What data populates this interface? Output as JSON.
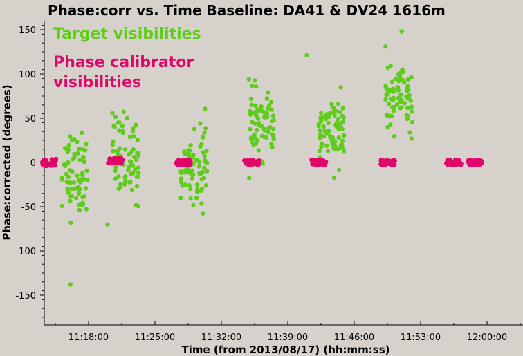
{
  "chart_data": {
    "type": "scatter",
    "title": "Phase:corr vs. Time Baseline: DA41 & DV24 1616m",
    "xlabel": "Time (from 2013/08/17) (hh:mm:ss)",
    "ylabel": "Phase:corrected (degrees)",
    "ylim": [
      -180,
      165
    ],
    "x_range_minutes": [
      683,
      734
    ],
    "x_ticks": [
      {
        "label": "11:18:00",
        "minute": 678
      },
      {
        "label": "11:25:00",
        "minute": 685
      },
      {
        "label": "11:32:00",
        "minute": 692
      },
      {
        "label": "11:39:00",
        "minute": 699
      },
      {
        "label": "11:46:00",
        "minute": 706
      },
      {
        "label": "11:53:00",
        "minute": 713
      },
      {
        "label": "12:00:00",
        "minute": 720
      }
    ],
    "y_ticks": [
      150,
      100,
      50,
      0,
      -50,
      -100,
      -150
    ],
    "grid": false,
    "legend_position": "top-left",
    "series": [
      {
        "name": "Target visibilities",
        "color": "#5fcc1c",
        "scans": [
          {
            "start": 675.2,
            "end": 677.9,
            "center": -10,
            "spread": 40
          },
          {
            "start": 680.5,
            "end": 683.3,
            "center": 5,
            "spread": 40
          },
          {
            "start": 687.7,
            "end": 690.5,
            "center": -5,
            "spread": 38
          },
          {
            "start": 694.9,
            "end": 697.7,
            "center": 45,
            "spread": 30
          },
          {
            "start": 702.2,
            "end": 705.0,
            "center": 35,
            "spread": 30
          },
          {
            "start": 709.3,
            "end": 712.2,
            "center": 70,
            "spread": 28
          }
        ],
        "outliers": [
          [
            676.1,
            -138
          ],
          [
            711.0,
            148
          ],
          [
            709.3,
            131
          ],
          [
            701.0,
            121
          ],
          [
            680.0,
            -70
          ]
        ]
      },
      {
        "name": "Phase calibrator visibilities",
        "color": "#e0076a",
        "scans": [
          {
            "start": 673.0,
            "end": 674.6,
            "center": 0,
            "spread": 4
          },
          {
            "start": 680.0,
            "end": 681.6,
            "center": 2,
            "spread": 3
          },
          {
            "start": 687.2,
            "end": 688.8,
            "center": 0,
            "spread": 3
          },
          {
            "start": 694.4,
            "end": 696.0,
            "center": 0,
            "spread": 3
          },
          {
            "start": 701.5,
            "end": 703.1,
            "center": 0,
            "spread": 3
          },
          {
            "start": 708.7,
            "end": 710.3,
            "center": 0,
            "spread": 3
          },
          {
            "start": 715.7,
            "end": 717.3,
            "center": 0,
            "spread": 3
          },
          {
            "start": 718.0,
            "end": 719.5,
            "center": 0,
            "spread": 3
          }
        ],
        "outliers": []
      }
    ]
  }
}
